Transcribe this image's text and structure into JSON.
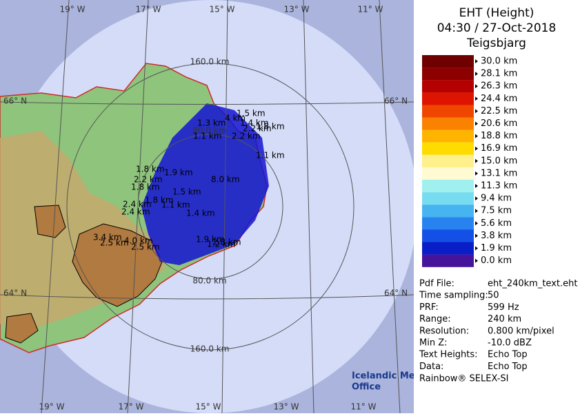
{
  "map": {
    "meridians": [
      "19° W",
      "17° W",
      "15° W",
      "13° W",
      "11° W"
    ],
    "parallels": [
      "66° N",
      "64° N"
    ],
    "rings": [
      "160.0 km",
      "80.0 km"
    ],
    "echo_labels": [
      "1.5 km",
      "1.3 km",
      "4 km",
      "1.4 km",
      "2.2 km",
      "1.8 km",
      "1.1 km",
      "2.2 km",
      "1.8 km",
      "1.9 km",
      "2.2 km",
      "1.1 km",
      "1.8 km",
      "1.5 km",
      "8.0 km",
      "2.4 km",
      "2.4 km",
      "1.8 km",
      "1.1 km",
      "1.4 km",
      "3.4 km",
      "2.5 km",
      "4.0 km",
      "2.5 km",
      "1.9 km",
      "1.2 km",
      "2.8 km"
    ],
    "logo": [
      "Icelandic Met",
      "Office"
    ]
  },
  "panel": {
    "title": "EHT (Height)",
    "time": "04:30 / 27-Oct-2018",
    "station": "Teigsbjarg",
    "scale": [
      {
        "label": "30.0 km",
        "color": "#6e0000"
      },
      {
        "label": "28.1 km",
        "color": "#8c0000"
      },
      {
        "label": "26.3 km",
        "color": "#b40000"
      },
      {
        "label": "24.4 km",
        "color": "#dc1400"
      },
      {
        "label": "22.5 km",
        "color": "#f04600"
      },
      {
        "label": "20.6 km",
        "color": "#fa8200"
      },
      {
        "label": "18.8 km",
        "color": "#ffb400"
      },
      {
        "label": "16.9 km",
        "color": "#ffdc00"
      },
      {
        "label": "15.0 km",
        "color": "#fff08c"
      },
      {
        "label": "13.1 km",
        "color": "#fffad2"
      },
      {
        "label": "11.3 km",
        "color": "#a0f0f0"
      },
      {
        "label": "9.4 km",
        "color": "#78dcf0"
      },
      {
        "label": "7.5 km",
        "color": "#46b4f0"
      },
      {
        "label": "5.6 km",
        "color": "#2882f0"
      },
      {
        "label": "3.8 km",
        "color": "#1450e6"
      },
      {
        "label": "1.9 km",
        "color": "#0a1ec8"
      },
      {
        "label": "0.0 km",
        "color": "#46149a"
      }
    ],
    "info": [
      [
        "Pdf File:",
        "eht_240km_text.eht"
      ],
      [
        "Time sampling:",
        "50"
      ],
      [
        "PRF:",
        "599 Hz"
      ],
      [
        "Range:",
        "240 km"
      ],
      [
        "Resolution:",
        "0.800 km/pixel"
      ],
      [
        "Min Z:",
        "-10.0 dBZ"
      ],
      [
        "Text Heights:",
        "Echo Top"
      ],
      [
        "Data:",
        "Echo Top"
      ]
    ],
    "footer": "Rainbow® SELEX-SI"
  }
}
